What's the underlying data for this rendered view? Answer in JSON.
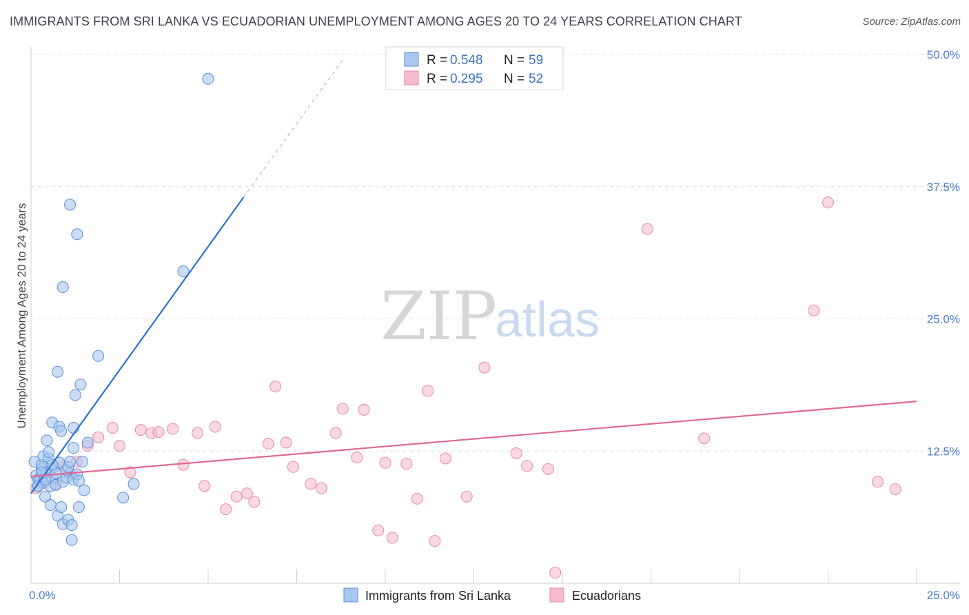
{
  "title": "IMMIGRANTS FROM SRI LANKA VS ECUADORIAN UNEMPLOYMENT AMONG AGES 20 TO 24 YEARS CORRELATION CHART",
  "source": "Source: ZipAtlas.com",
  "watermark": {
    "part1": "ZIP",
    "part2": "atlas"
  },
  "colors": {
    "blue_fill": "#a8c8f0",
    "blue_stroke": "#5b8fd6",
    "blue_line": "#2a6fd0",
    "pink_fill": "#f5bcd0",
    "pink_stroke": "#e889a8",
    "pink_line": "#e06896",
    "grid": "#dcdcdc",
    "tick_label": "#4a7cc9"
  },
  "legend": {
    "series": [
      {
        "r_label": "R =",
        "r_value": "0.548",
        "n_label": "N =",
        "n_value": "59"
      },
      {
        "r_label": "R =",
        "r_value": "0.295",
        "n_label": "N =",
        "n_value": "52"
      }
    ]
  },
  "bottom_legend": [
    "Immigrants from Sri Lanka",
    "Ecuadorians"
  ],
  "chart_data": {
    "type": "scatter",
    "xlabel": "",
    "ylabel": "Unemployment Among Ages 20 to 24 years",
    "xlim": [
      0,
      25
    ],
    "ylim": [
      0,
      50
    ],
    "x_tick_labels": [
      "0.0%",
      "25.0%"
    ],
    "y_tick_labels": [
      "12.5%",
      "25.0%",
      "37.5%",
      "50.0%"
    ],
    "y_ticks": [
      12.5,
      25.0,
      37.5,
      50.0
    ],
    "legend_position": "top-center",
    "series": [
      {
        "name": "Immigrants from Sri Lanka",
        "R": 0.548,
        "N": 59,
        "trend": {
          "x0": 0.0,
          "y0": 8.5,
          "x1": 6.0,
          "y1": 36.5,
          "dash_to_x": 8.8,
          "dash_to_y": 49.5
        },
        "points": [
          [
            0.1,
            11.5
          ],
          [
            0.15,
            10.2
          ],
          [
            0.2,
            9.8
          ],
          [
            0.2,
            9.2
          ],
          [
            0.25,
            9.8
          ],
          [
            0.3,
            10.8
          ],
          [
            0.3,
            11.2
          ],
          [
            0.35,
            9.5
          ],
          [
            0.35,
            12.0
          ],
          [
            0.4,
            8.2
          ],
          [
            0.45,
            10.5
          ],
          [
            0.45,
            13.5
          ],
          [
            0.5,
            11.8
          ],
          [
            0.5,
            12.4
          ],
          [
            0.55,
            9.2
          ],
          [
            0.55,
            7.4
          ],
          [
            0.6,
            10.0
          ],
          [
            0.6,
            15.2
          ],
          [
            0.65,
            11.0
          ],
          [
            0.7,
            10.4
          ],
          [
            0.7,
            9.3
          ],
          [
            0.75,
            6.4
          ],
          [
            0.75,
            20.0
          ],
          [
            0.8,
            14.8
          ],
          [
            0.8,
            11.4
          ],
          [
            0.85,
            14.4
          ],
          [
            0.85,
            7.2
          ],
          [
            0.9,
            5.6
          ],
          [
            0.9,
            28.0
          ],
          [
            0.9,
            9.6
          ],
          [
            1.0,
            10.0
          ],
          [
            1.0,
            10.7
          ],
          [
            1.05,
            11.0
          ],
          [
            1.05,
            6.0
          ],
          [
            1.1,
            35.8
          ],
          [
            1.1,
            11.5
          ],
          [
            1.15,
            4.1
          ],
          [
            1.15,
            5.5
          ],
          [
            1.2,
            9.8
          ],
          [
            1.2,
            12.8
          ],
          [
            1.2,
            14.7
          ],
          [
            1.25,
            17.8
          ],
          [
            1.3,
            10.3
          ],
          [
            1.3,
            33.0
          ],
          [
            1.35,
            9.7
          ],
          [
            1.35,
            7.2
          ],
          [
            1.4,
            18.8
          ],
          [
            1.45,
            11.5
          ],
          [
            1.5,
            8.8
          ],
          [
            1.6,
            13.3
          ],
          [
            1.9,
            21.5
          ],
          [
            2.6,
            8.1
          ],
          [
            2.9,
            9.4
          ],
          [
            4.3,
            29.5
          ],
          [
            5.0,
            47.7
          ],
          [
            0.2,
            9.2
          ],
          [
            0.3,
            10.5
          ],
          [
            0.4,
            9.8
          ],
          [
            0.6,
            11.2
          ]
        ]
      },
      {
        "name": "Ecuadorians",
        "R": 0.295,
        "N": 52,
        "trend": {
          "x0": 0.0,
          "y0": 10.1,
          "x1": 25.0,
          "y1": 17.2
        },
        "points": [
          [
            0.15,
            9.0
          ],
          [
            0.3,
            9.7
          ],
          [
            0.5,
            10.5
          ],
          [
            0.7,
            9.4
          ],
          [
            0.9,
            11.1
          ],
          [
            1.1,
            10.4
          ],
          [
            1.3,
            11.5
          ],
          [
            1.6,
            13.0
          ],
          [
            1.9,
            13.8
          ],
          [
            2.3,
            14.7
          ],
          [
            2.5,
            13.0
          ],
          [
            2.8,
            10.5
          ],
          [
            3.1,
            14.5
          ],
          [
            3.4,
            14.2
          ],
          [
            3.6,
            14.3
          ],
          [
            4.0,
            14.6
          ],
          [
            4.3,
            11.2
          ],
          [
            4.7,
            14.2
          ],
          [
            4.9,
            9.2
          ],
          [
            5.2,
            14.8
          ],
          [
            5.5,
            7.0
          ],
          [
            5.8,
            8.2
          ],
          [
            6.1,
            8.5
          ],
          [
            6.3,
            7.7
          ],
          [
            6.7,
            13.2
          ],
          [
            6.9,
            18.6
          ],
          [
            7.2,
            13.3
          ],
          [
            7.4,
            11.0
          ],
          [
            7.9,
            9.4
          ],
          [
            8.2,
            9.0
          ],
          [
            8.6,
            14.2
          ],
          [
            8.8,
            16.5
          ],
          [
            9.2,
            11.9
          ],
          [
            9.4,
            16.4
          ],
          [
            9.8,
            5.0
          ],
          [
            10.0,
            11.4
          ],
          [
            10.2,
            4.3
          ],
          [
            10.6,
            11.3
          ],
          [
            10.9,
            8.0
          ],
          [
            11.2,
            18.2
          ],
          [
            11.4,
            4.0
          ],
          [
            11.7,
            11.8
          ],
          [
            12.3,
            8.2
          ],
          [
            12.8,
            20.4
          ],
          [
            13.7,
            12.3
          ],
          [
            14.0,
            11.1
          ],
          [
            14.6,
            10.8
          ],
          [
            14.8,
            1.0
          ],
          [
            17.4,
            33.5
          ],
          [
            19.0,
            13.7
          ],
          [
            22.5,
            36.0
          ],
          [
            23.9,
            9.6
          ]
        ]
      }
    ],
    "extra_points": [
      [
        22.1,
        25.8
      ],
      [
        24.4,
        8.9
      ]
    ]
  }
}
